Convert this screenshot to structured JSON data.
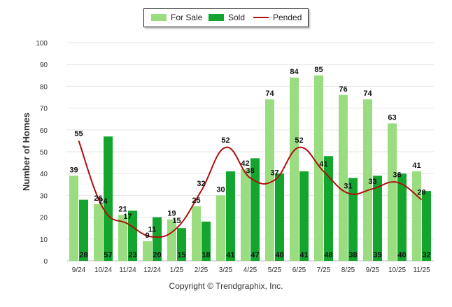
{
  "chart_data": {
    "type": "bar",
    "ylabel": "Number of Homes",
    "xlabel": "",
    "ylim": [
      0,
      100
    ],
    "yticks": [
      0,
      10,
      20,
      30,
      40,
      50,
      60,
      70,
      80,
      90,
      100
    ],
    "grid": true,
    "legend_position": "top-center",
    "categories": [
      "9/24",
      "10/24",
      "11/24",
      "12/24",
      "1/25",
      "2/25",
      "3/25",
      "4/25",
      "5/25",
      "6/25",
      "7/25",
      "8/25",
      "9/25",
      "10/25",
      "11/25"
    ],
    "series": [
      {
        "name": "For Sale",
        "type": "bar",
        "color": "#99dd80",
        "values": [
          39,
          26,
          21,
          9,
          19,
          25,
          30,
          42,
          74,
          84,
          85,
          76,
          74,
          63,
          41
        ]
      },
      {
        "name": "Sold",
        "type": "bar",
        "color": "#13a52d",
        "values": [
          28,
          57,
          23,
          20,
          15,
          18,
          41,
          47,
          40,
          41,
          48,
          38,
          39,
          40,
          32
        ]
      },
      {
        "name": "Pended",
        "type": "line",
        "color": "#b00d0d",
        "values": [
          55,
          24,
          17,
          11,
          15,
          32,
          52,
          38,
          37,
          52,
          41,
          31,
          33,
          36,
          28
        ]
      }
    ]
  },
  "legend": {
    "for_sale": "For Sale",
    "sold": "Sold",
    "pended": "Pended"
  },
  "footer": {
    "copyright": "Copyright © Trendgraphix, Inc."
  }
}
